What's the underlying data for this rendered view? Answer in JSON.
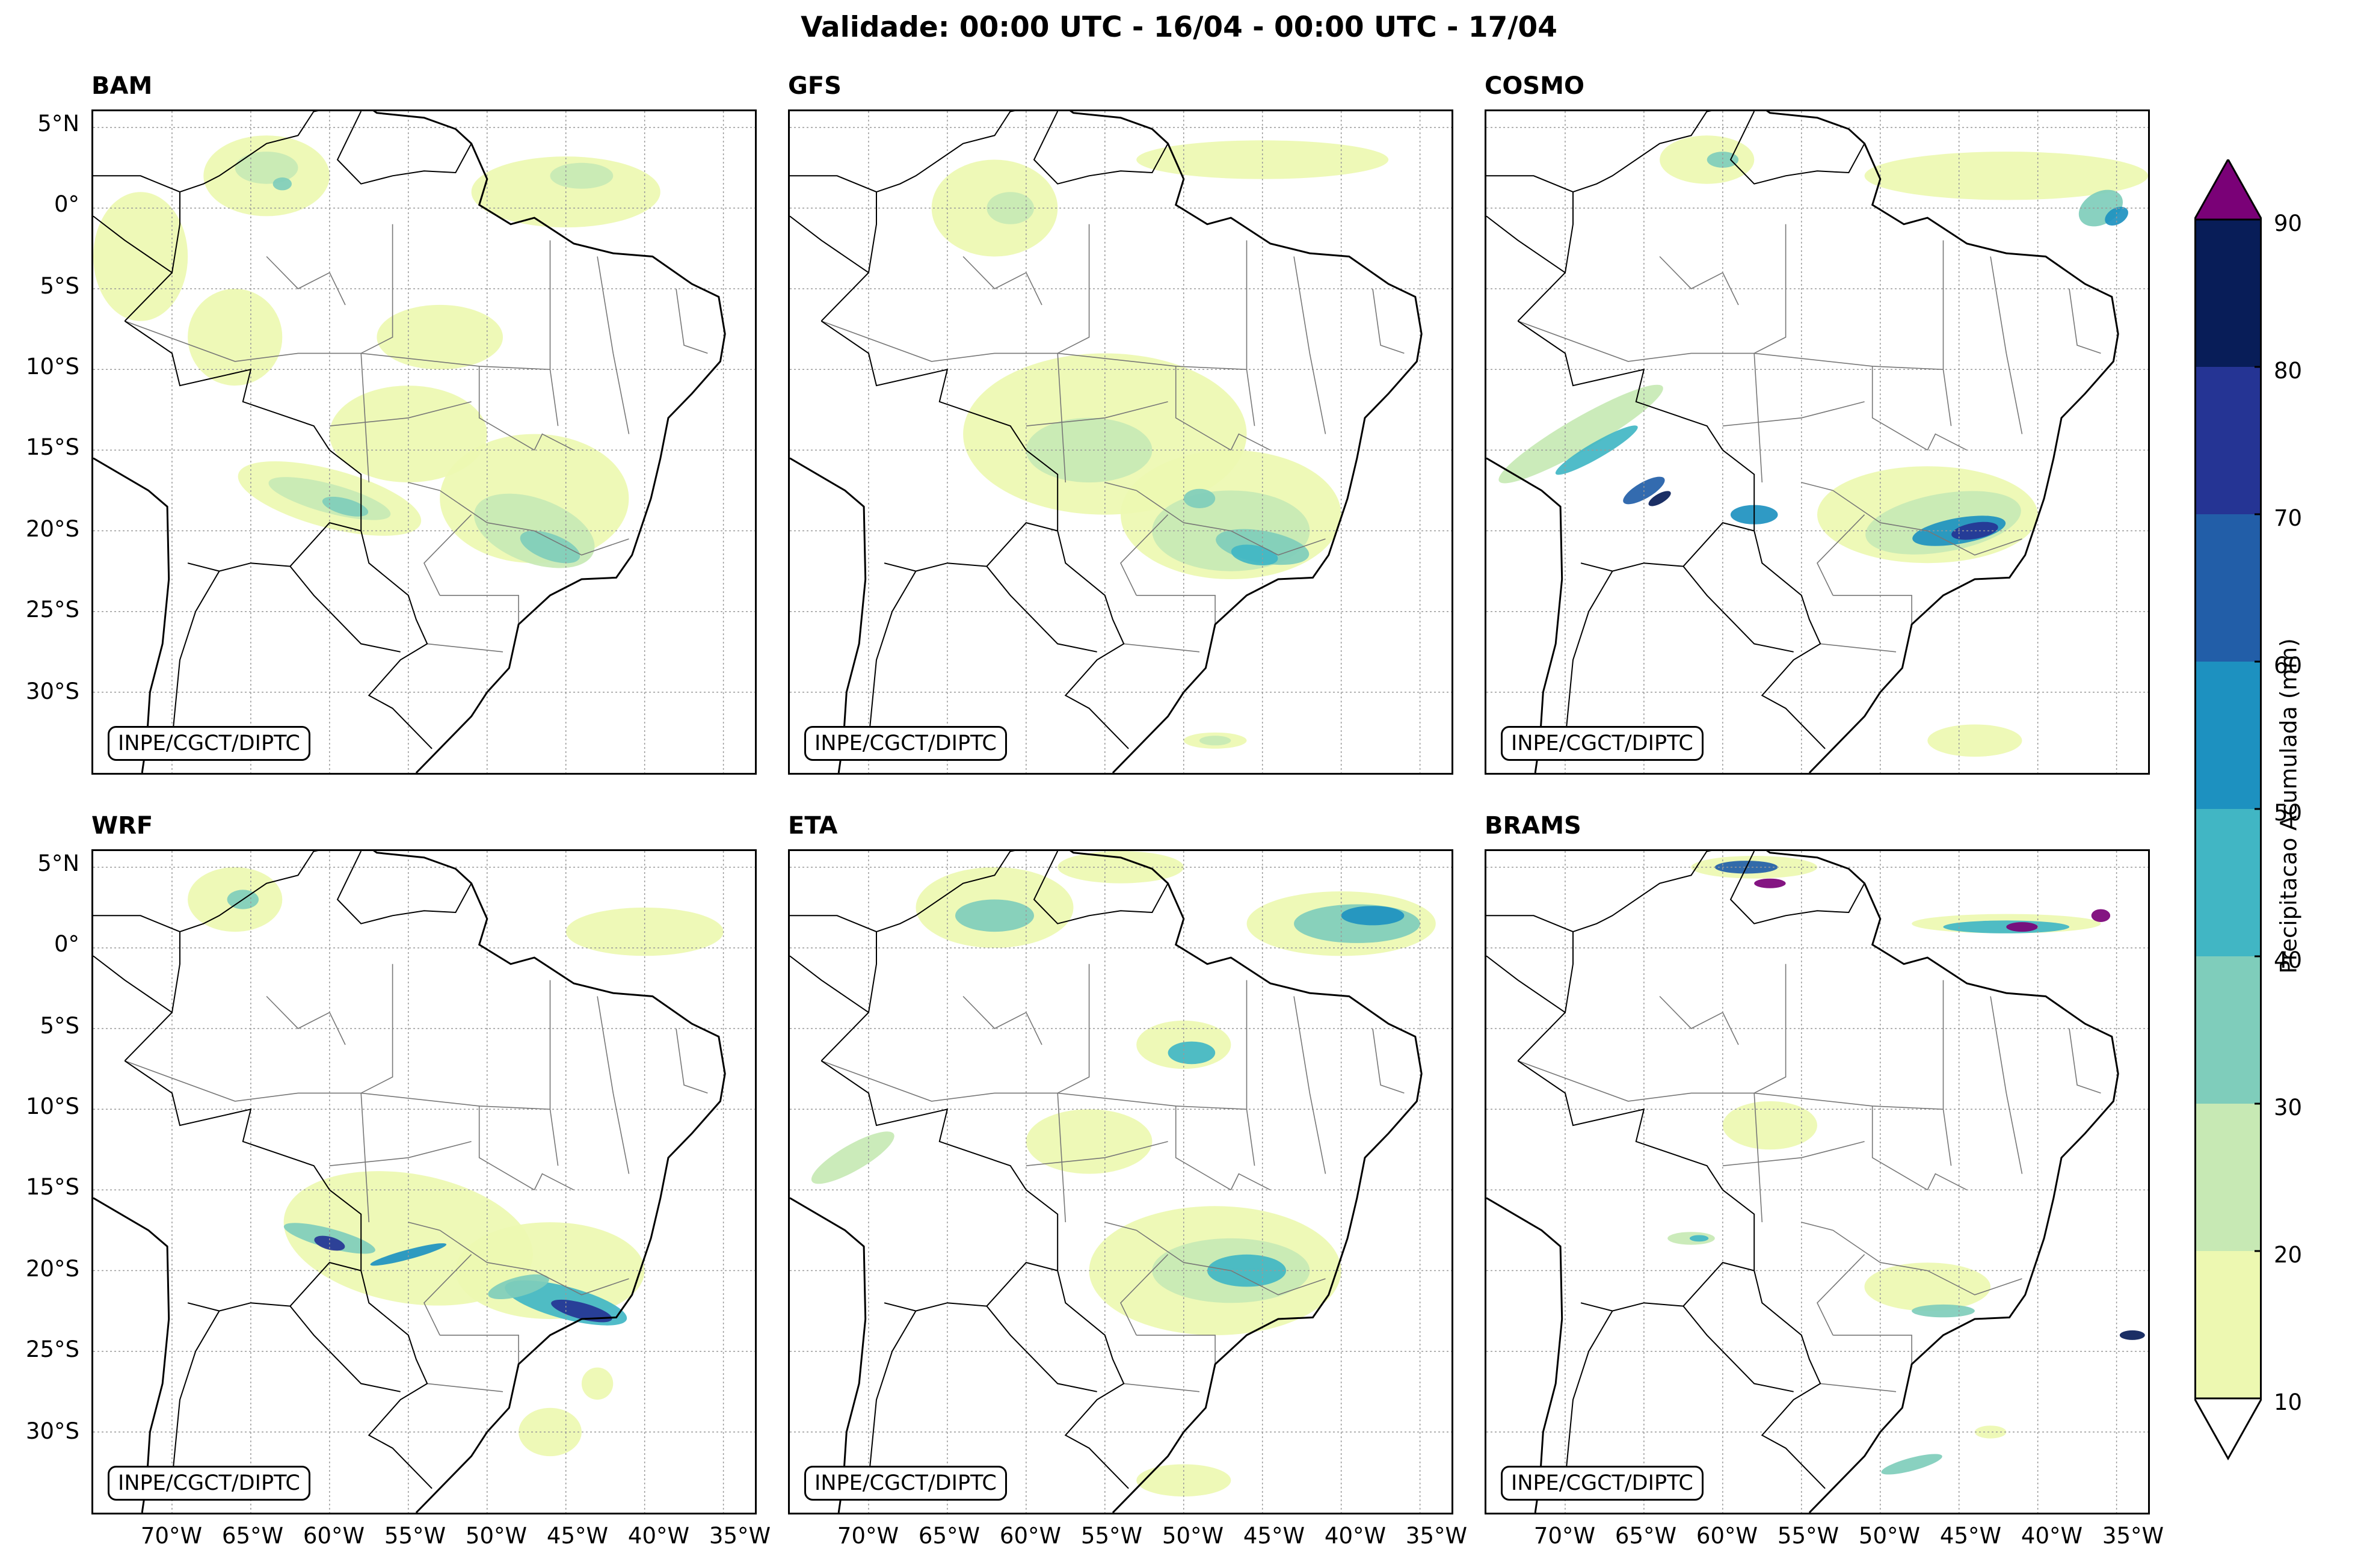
{
  "title": "Validade: 00:00 UTC - 16/04 - 00:00 UTC - 17/04",
  "credit": "INPE/CGCT/DIPTC",
  "panels": [
    {
      "name": "BAM"
    },
    {
      "name": "GFS"
    },
    {
      "name": "COSMO"
    },
    {
      "name": "WRF"
    },
    {
      "name": "ETA"
    },
    {
      "name": "BRAMS"
    }
  ],
  "lat_labels": [
    "5°N",
    "0°",
    "5°S",
    "10°S",
    "15°S",
    "20°S",
    "25°S",
    "30°S"
  ],
  "lon_labels": [
    "70°W",
    "65°W",
    "60°W",
    "55°W",
    "50°W",
    "45°W",
    "40°W",
    "35°W"
  ],
  "colorbar": {
    "label": "Precipitacao Acumulada (mm)",
    "ticks": [
      "10",
      "20",
      "30",
      "40",
      "50",
      "60",
      "70",
      "80",
      "90"
    ],
    "colors": [
      "#edf8b1",
      "#c7e9b4",
      "#7fcdbb",
      "#41b6c4",
      "#1d91c0",
      "#225ea8",
      "#253494",
      "#081d58"
    ],
    "over_color": "#7a0177"
  }
}
